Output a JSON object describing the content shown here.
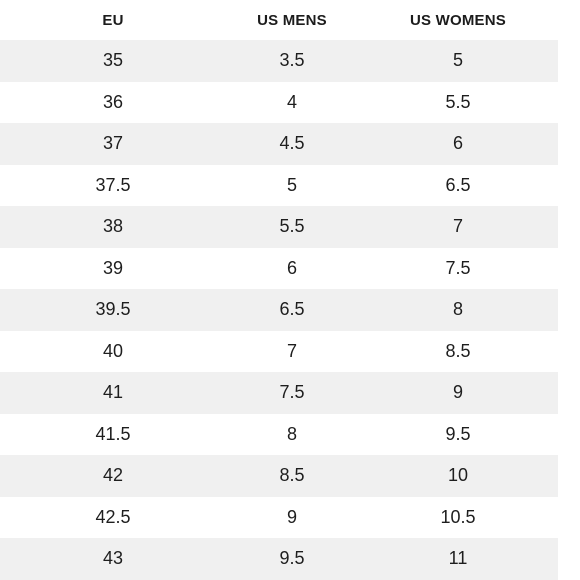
{
  "table": {
    "headers": [
      "EU",
      "US MENS",
      "US WOMENS"
    ],
    "rows": [
      [
        "35",
        "3.5",
        "5"
      ],
      [
        "36",
        "4",
        "5.5"
      ],
      [
        "37",
        "4.5",
        "6"
      ],
      [
        "37.5",
        "5",
        "6.5"
      ],
      [
        "38",
        "5.5",
        "7"
      ],
      [
        "39",
        "6",
        "7.5"
      ],
      [
        "39.5",
        "6.5",
        "8"
      ],
      [
        "40",
        "7",
        "8.5"
      ],
      [
        "41",
        "7.5",
        "9"
      ],
      [
        "41.5",
        "8",
        "9.5"
      ],
      [
        "42",
        "8.5",
        "10"
      ],
      [
        "42.5",
        "9",
        "10.5"
      ],
      [
        "43",
        "9.5",
        "11"
      ]
    ]
  },
  "colors": {
    "row_shade": "#f0f0f0",
    "background": "#ffffff",
    "text": "#1e1e1e"
  }
}
